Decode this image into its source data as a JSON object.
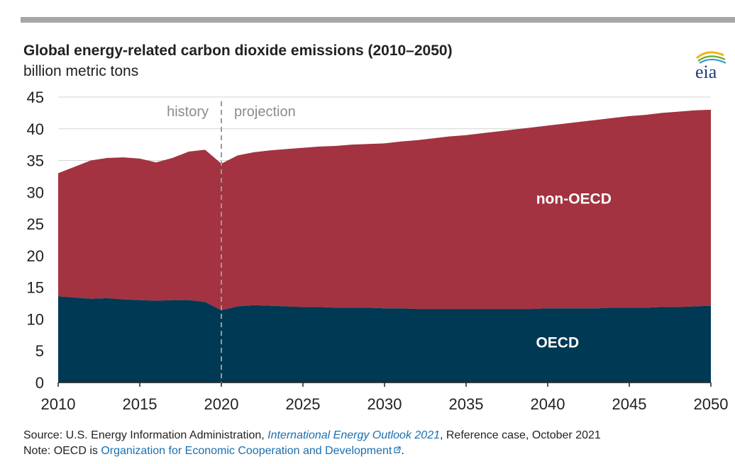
{
  "title": "Global energy-related carbon dioxide emissions (2010–2050)",
  "subtitle": "billion metric tons",
  "logo_text": "eia",
  "footer": {
    "source_prefix": "Source: U.S. Energy Information Administration, ",
    "source_link": "International Energy Outlook 2021",
    "source_suffix": ", Reference case, October 2021",
    "note_prefix": "Note: OECD is ",
    "note_link": "Organization for Economic Cooperation and Development",
    "note_suffix": "."
  },
  "chart_data": {
    "type": "area",
    "stacked": true,
    "x": [
      2010,
      2011,
      2012,
      2013,
      2014,
      2015,
      2016,
      2017,
      2018,
      2019,
      2020,
      2021,
      2022,
      2023,
      2024,
      2025,
      2026,
      2027,
      2028,
      2029,
      2030,
      2031,
      2032,
      2033,
      2034,
      2035,
      2036,
      2037,
      2038,
      2039,
      2040,
      2041,
      2042,
      2043,
      2044,
      2045,
      2046,
      2047,
      2048,
      2049,
      2050
    ],
    "series": [
      {
        "name": "OECD",
        "color": "#003953",
        "values": [
          13.6,
          13.4,
          13.2,
          13.3,
          13.1,
          13.0,
          12.9,
          13.0,
          13.0,
          12.7,
          11.4,
          12.0,
          12.2,
          12.1,
          12.0,
          11.9,
          11.9,
          11.8,
          11.8,
          11.8,
          11.7,
          11.7,
          11.6,
          11.6,
          11.6,
          11.6,
          11.6,
          11.6,
          11.6,
          11.6,
          11.7,
          11.7,
          11.7,
          11.7,
          11.8,
          11.8,
          11.8,
          11.9,
          11.9,
          12.0,
          12.1
        ]
      },
      {
        "name": "non-OECD",
        "color": "#a33340",
        "values": [
          19.4,
          20.6,
          21.8,
          22.1,
          22.4,
          22.3,
          21.8,
          22.4,
          23.4,
          24.0,
          23.1,
          23.8,
          24.1,
          24.5,
          24.8,
          25.1,
          25.3,
          25.5,
          25.7,
          25.8,
          26.0,
          26.3,
          26.6,
          26.9,
          27.2,
          27.4,
          27.7,
          28.0,
          28.3,
          28.6,
          28.8,
          29.1,
          29.4,
          29.7,
          29.9,
          30.2,
          30.4,
          30.6,
          30.8,
          30.9,
          30.9
        ]
      }
    ],
    "xlim": [
      2010,
      2050
    ],
    "ylim": [
      0,
      45
    ],
    "xticks": [
      "2010",
      "2015",
      "2020",
      "2025",
      "2030",
      "2035",
      "2040",
      "2045",
      "2050"
    ],
    "yticks": [
      "0",
      "5",
      "10",
      "15",
      "20",
      "25",
      "30",
      "35",
      "40",
      "45"
    ],
    "divider_x": 2020,
    "phase_labels": [
      "history",
      "projection"
    ],
    "series_labels": [
      "non-OECD",
      "OECD"
    ],
    "grid": true,
    "legend": "none"
  }
}
